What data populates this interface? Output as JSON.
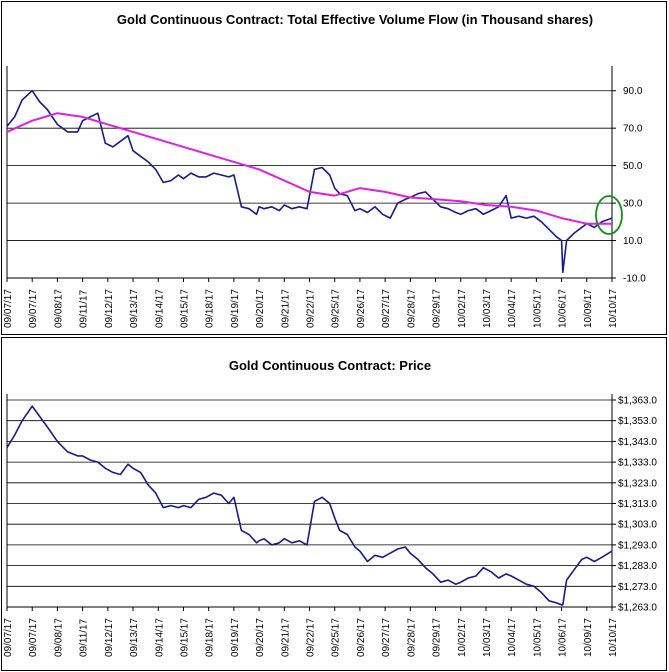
{
  "chart_data": [
    {
      "type": "line",
      "title": "Gold Continuous Contract: Total Effective Volume Flow (in Thousand shares)",
      "xlabel": "",
      "ylabel": "",
      "ylim": [
        -10,
        100
      ],
      "yticks": [
        "-10.0",
        "10.0",
        "30.0",
        "50.0",
        "70.0",
        "90.0"
      ],
      "categories": [
        "09/07/17",
        "09/07/17",
        "09/08/17",
        "09/11/17",
        "09/12/17",
        "09/13/17",
        "09/14/17",
        "09/15/17",
        "09/18/17",
        "09/19/17",
        "09/20/17",
        "09/21/17",
        "09/22/17",
        "09/25/17",
        "09/26/17",
        "09/27/17",
        "09/28/17",
        "09/29/17",
        "10/02/17",
        "10/03/17",
        "10/04/17",
        "10/05/17",
        "10/06/17",
        "10/09/17",
        "10/10/17"
      ],
      "grid": true,
      "series": [
        {
          "color": "#1a1a8c",
          "x": [
            0,
            0.3,
            0.6,
            1.0,
            1.3,
            1.6,
            2.0,
            2.4,
            2.8,
            3.0,
            3.3,
            3.6,
            3.9,
            4.2,
            4.5,
            4.8,
            5.0,
            5.3,
            5.6,
            5.9,
            6.2,
            6.5,
            6.8,
            7.0,
            7.3,
            7.6,
            7.9,
            8.2,
            8.5,
            8.8,
            9.0,
            9.3,
            9.6,
            9.9,
            10.0,
            10.2,
            10.5,
            10.8,
            11.0,
            11.3,
            11.6,
            11.9,
            12.2,
            12.5,
            12.8,
            13.0,
            13.2,
            13.5,
            13.8,
            14.0,
            14.3,
            14.6,
            14.9,
            15.2,
            15.5,
            15.8,
            16.0,
            16.3,
            16.6,
            16.9,
            17.2,
            17.5,
            17.8,
            18.0,
            18.3,
            18.6,
            18.9,
            19.2,
            19.5,
            19.8,
            20.0,
            20.3,
            20.6,
            20.9,
            21.2,
            21.5,
            21.8,
            22.0,
            22.05,
            22.2,
            22.5,
            22.8,
            23.0,
            23.3,
            23.6,
            24.0
          ],
          "values": [
            71,
            76,
            85,
            90,
            84,
            80,
            72,
            68,
            68,
            74,
            76,
            78,
            62,
            60,
            63,
            66,
            58,
            55,
            52,
            48,
            41,
            42,
            45,
            43,
            46,
            44,
            44,
            46,
            45,
            44,
            45,
            28,
            27,
            24,
            28,
            27,
            28,
            26,
            29,
            27,
            28,
            27,
            48,
            49,
            45,
            38,
            35,
            34,
            26,
            27,
            25,
            28,
            24,
            22,
            30,
            32,
            33,
            35,
            36,
            32,
            28,
            27,
            25,
            24,
            26,
            27,
            24,
            26,
            28,
            34,
            22,
            23,
            22,
            23,
            20,
            16,
            12,
            10,
            -7,
            10,
            14,
            17,
            19,
            17,
            20,
            22
          ]
        },
        {
          "color": "#e020e0",
          "x": [
            0,
            1,
            2,
            3,
            4,
            5,
            6,
            7,
            8,
            9,
            10,
            11,
            12,
            13,
            14,
            15,
            16,
            17,
            18,
            19,
            20,
            21,
            22,
            23,
            24
          ],
          "values": [
            68,
            74,
            78,
            76,
            72,
            68,
            64,
            60,
            56,
            52,
            48,
            42,
            36,
            34,
            38,
            36,
            33,
            32,
            31,
            29,
            28,
            26,
            22,
            19,
            19
          ]
        }
      ]
    },
    {
      "type": "line",
      "title": "Gold Continuous Contract: Price",
      "xlabel": "",
      "ylabel": "",
      "ylim": [
        1263,
        1363
      ],
      "yticks": [
        "$1,263.0",
        "$1,273.0",
        "$1,283.0",
        "$1,293.0",
        "$1,303.0",
        "$1,313.0",
        "$1,323.0",
        "$1,333.0",
        "$1,343.0",
        "$1,353.0",
        "$1,363.0"
      ],
      "categories": [
        "09/07/17",
        "09/07/17",
        "09/08/17",
        "09/11/17",
        "09/12/17",
        "09/13/17",
        "09/14/17",
        "09/15/17",
        "09/18/17",
        "09/19/17",
        "09/20/17",
        "09/21/17",
        "09/22/17",
        "09/25/17",
        "09/26/17",
        "09/27/17",
        "09/28/17",
        "09/29/17",
        "10/02/17",
        "10/03/17",
        "10/04/17",
        "10/05/17",
        "10/06/17",
        "10/09/17",
        "10/10/17"
      ],
      "grid": true,
      "series": [
        {
          "color": "#1a1a8c",
          "x": [
            0,
            0.3,
            0.6,
            1.0,
            1.3,
            1.6,
            2.0,
            2.4,
            2.8,
            3.0,
            3.3,
            3.6,
            3.9,
            4.2,
            4.5,
            4.8,
            5.0,
            5.3,
            5.6,
            5.9,
            6.2,
            6.5,
            6.8,
            7.0,
            7.3,
            7.6,
            7.9,
            8.2,
            8.5,
            8.8,
            9.0,
            9.3,
            9.6,
            9.9,
            10.0,
            10.2,
            10.5,
            10.8,
            11.0,
            11.3,
            11.6,
            11.9,
            12.2,
            12.5,
            12.8,
            13.0,
            13.2,
            13.5,
            13.8,
            14.0,
            14.3,
            14.6,
            14.9,
            15.2,
            15.5,
            15.8,
            16.0,
            16.3,
            16.6,
            16.9,
            17.2,
            17.5,
            17.8,
            18.0,
            18.3,
            18.6,
            18.9,
            19.2,
            19.5,
            19.8,
            20.0,
            20.3,
            20.6,
            20.9,
            21.2,
            21.5,
            21.8,
            22.0,
            22.05,
            22.2,
            22.5,
            22.8,
            23.0,
            23.3,
            23.6,
            24.0
          ],
          "values": [
            1340,
            1346,
            1353,
            1360,
            1355,
            1350,
            1343,
            1338,
            1336,
            1336,
            1334,
            1333,
            1330,
            1328,
            1327,
            1332,
            1330,
            1328,
            1322,
            1318,
            1311,
            1312,
            1311,
            1312,
            1311,
            1315,
            1316,
            1318,
            1317,
            1313,
            1316,
            1300,
            1298,
            1294,
            1295,
            1296,
            1293,
            1294,
            1296,
            1294,
            1295,
            1293,
            1314,
            1316,
            1313,
            1306,
            1300,
            1298,
            1292,
            1290,
            1285,
            1288,
            1287,
            1289,
            1291,
            1292,
            1289,
            1286,
            1282,
            1279,
            1275,
            1276,
            1274,
            1275,
            1277,
            1278,
            1282,
            1280,
            1277,
            1279,
            1278,
            1276,
            1274,
            1273,
            1270,
            1266,
            1265,
            1264,
            1264,
            1276,
            1281,
            1286,
            1287,
            1285,
            1287,
            1290
          ]
        }
      ]
    }
  ]
}
